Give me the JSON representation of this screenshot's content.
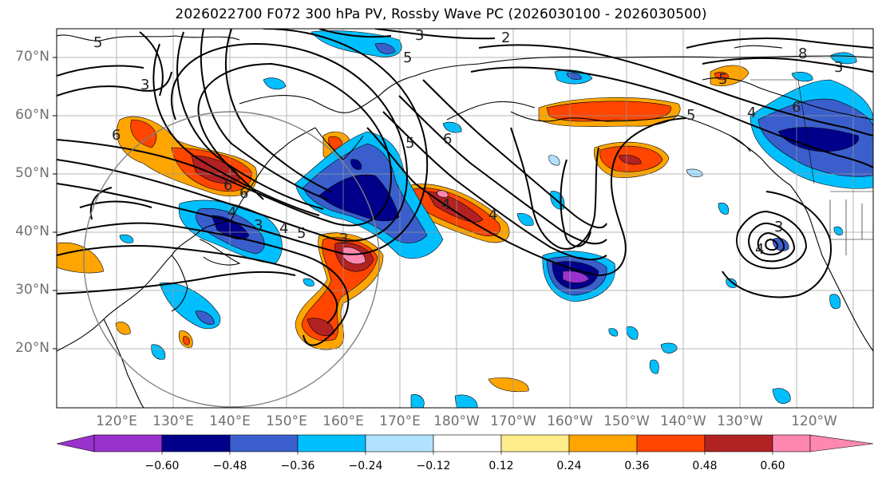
{
  "title": "2026022700 F072 300 hPa PV, Rossby Wave PC (2026030100 - 2026030500)",
  "lat_labels": [
    "70°N",
    "60°N",
    "50°N",
    "40°N",
    "30°N",
    "20°N"
  ],
  "lon_labels": [
    "120°E",
    "130°E",
    "140°E",
    "150°E",
    "160°E",
    "170°E",
    "180°W",
    "170°W",
    "160°W",
    "150°W",
    "140°W",
    "130°W",
    "120°W"
  ],
  "colorbar": {
    "ticks": [
      "−0.60",
      "−0.48",
      "−0.36",
      "−0.24",
      "−0.12",
      "0.12",
      "0.24",
      "0.36",
      "0.48",
      "0.60"
    ],
    "colors": [
      "#9932cc",
      "#00008b",
      "#3a5fcd",
      "#00bfff",
      "#b0e2ff",
      "#ffffff",
      "#ffec8b",
      "#ffa500",
      "#ff4500",
      "#b22222",
      "#ff88b0"
    ]
  },
  "contour_labels": [
    "6",
    "6",
    "6",
    "5",
    "4",
    "3",
    "3",
    "2",
    "5",
    "4",
    "4",
    "6",
    "8",
    "5",
    "3",
    "6",
    "5",
    "4",
    "4",
    "3",
    "5",
    "4",
    "3",
    "5",
    "3"
  ]
}
